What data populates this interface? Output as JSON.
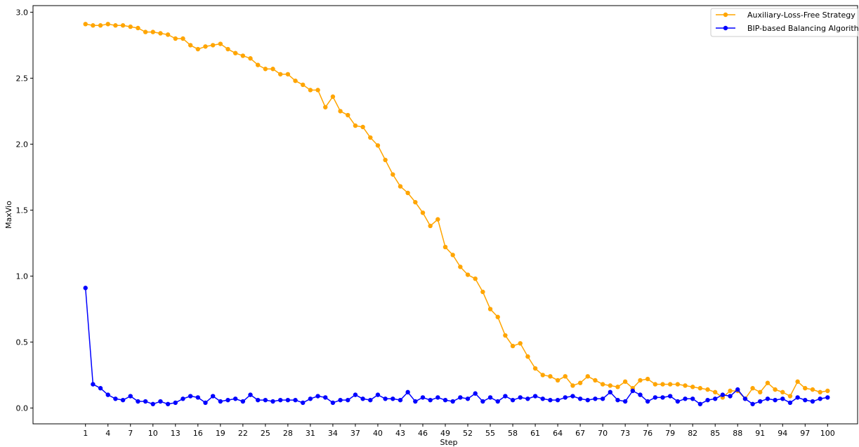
{
  "chart_data": {
    "type": "line",
    "title": "",
    "xlabel": "Step",
    "ylabel": "MaxVio",
    "xlim": [
      -6,
      104
    ],
    "ylim": [
      -0.12,
      3.05
    ],
    "x_ticks": [
      1,
      4,
      7,
      10,
      13,
      16,
      19,
      22,
      25,
      28,
      31,
      34,
      37,
      40,
      43,
      46,
      49,
      52,
      55,
      58,
      61,
      64,
      67,
      70,
      73,
      76,
      79,
      82,
      85,
      88,
      91,
      94,
      97,
      100
    ],
    "y_ticks": [
      0.0,
      0.5,
      1.0,
      1.5,
      2.0,
      2.5,
      3.0
    ],
    "y_tick_labels": [
      "0.0",
      "0.5",
      "1.0",
      "1.5",
      "2.0",
      "2.5",
      "3.0"
    ],
    "grid": false,
    "legend_position": "top-right",
    "x": [
      1,
      2,
      3,
      4,
      5,
      6,
      7,
      8,
      9,
      10,
      11,
      12,
      13,
      14,
      15,
      16,
      17,
      18,
      19,
      20,
      21,
      22,
      23,
      24,
      25,
      26,
      27,
      28,
      29,
      30,
      31,
      32,
      33,
      34,
      35,
      36,
      37,
      38,
      39,
      40,
      41,
      42,
      43,
      44,
      45,
      46,
      47,
      48,
      49,
      50,
      51,
      52,
      53,
      54,
      55,
      56,
      57,
      58,
      59,
      60,
      61,
      62,
      63,
      64,
      65,
      66,
      67,
      68,
      69,
      70,
      71,
      72,
      73,
      74,
      75,
      76,
      77,
      78,
      79,
      80,
      81,
      82,
      83,
      84,
      85,
      86,
      87,
      88,
      89,
      90,
      91,
      92,
      93,
      94,
      95,
      96,
      97,
      98,
      99,
      100
    ],
    "series": [
      {
        "name": "Auxiliary-Loss-Free Strategy",
        "color": "#FFA500",
        "values": [
          2.91,
          2.9,
          2.9,
          2.91,
          2.9,
          2.9,
          2.89,
          2.88,
          2.85,
          2.85,
          2.84,
          2.83,
          2.8,
          2.8,
          2.75,
          2.72,
          2.74,
          2.75,
          2.76,
          2.72,
          2.69,
          2.67,
          2.65,
          2.6,
          2.57,
          2.57,
          2.53,
          2.53,
          2.48,
          2.45,
          2.41,
          2.41,
          2.28,
          2.36,
          2.25,
          2.22,
          2.14,
          2.13,
          2.05,
          1.99,
          1.88,
          1.77,
          1.68,
          1.63,
          1.56,
          1.48,
          1.38,
          1.43,
          1.22,
          1.16,
          1.07,
          1.01,
          0.98,
          0.88,
          0.75,
          0.69,
          0.55,
          0.47,
          0.49,
          0.39,
          0.3,
          0.25,
          0.24,
          0.21,
          0.24,
          0.17,
          0.19,
          0.24,
          0.21,
          0.18,
          0.17,
          0.16,
          0.2,
          0.15,
          0.21,
          0.22,
          0.18,
          0.18,
          0.18,
          0.18,
          0.17,
          0.16,
          0.15,
          0.14,
          0.12,
          0.08,
          0.13,
          0.13,
          0.07,
          0.15,
          0.12,
          0.19,
          0.14,
          0.12,
          0.09,
          0.2,
          0.15,
          0.14,
          0.12,
          0.13
        ]
      },
      {
        "name": "BIP-based Balancing Algorithm",
        "color": "#0000FF",
        "values": [
          0.91,
          0.18,
          0.15,
          0.1,
          0.07,
          0.06,
          0.09,
          0.05,
          0.05,
          0.03,
          0.05,
          0.03,
          0.04,
          0.07,
          0.09,
          0.08,
          0.04,
          0.09,
          0.05,
          0.06,
          0.07,
          0.05,
          0.1,
          0.06,
          0.06,
          0.05,
          0.06,
          0.06,
          0.06,
          0.04,
          0.07,
          0.09,
          0.08,
          0.04,
          0.06,
          0.06,
          0.1,
          0.07,
          0.06,
          0.1,
          0.07,
          0.07,
          0.06,
          0.12,
          0.05,
          0.08,
          0.06,
          0.08,
          0.06,
          0.05,
          0.08,
          0.07,
          0.11,
          0.05,
          0.08,
          0.05,
          0.09,
          0.06,
          0.08,
          0.07,
          0.09,
          0.07,
          0.06,
          0.06,
          0.08,
          0.09,
          0.07,
          0.06,
          0.07,
          0.07,
          0.12,
          0.06,
          0.05,
          0.13,
          0.1,
          0.05,
          0.08,
          0.08,
          0.09,
          0.05,
          0.07,
          0.07,
          0.03,
          0.06,
          0.07,
          0.1,
          0.09,
          0.14,
          0.07,
          0.03,
          0.05,
          0.07,
          0.06,
          0.07,
          0.04,
          0.08,
          0.06,
          0.05,
          0.07,
          0.08
        ]
      }
    ]
  }
}
